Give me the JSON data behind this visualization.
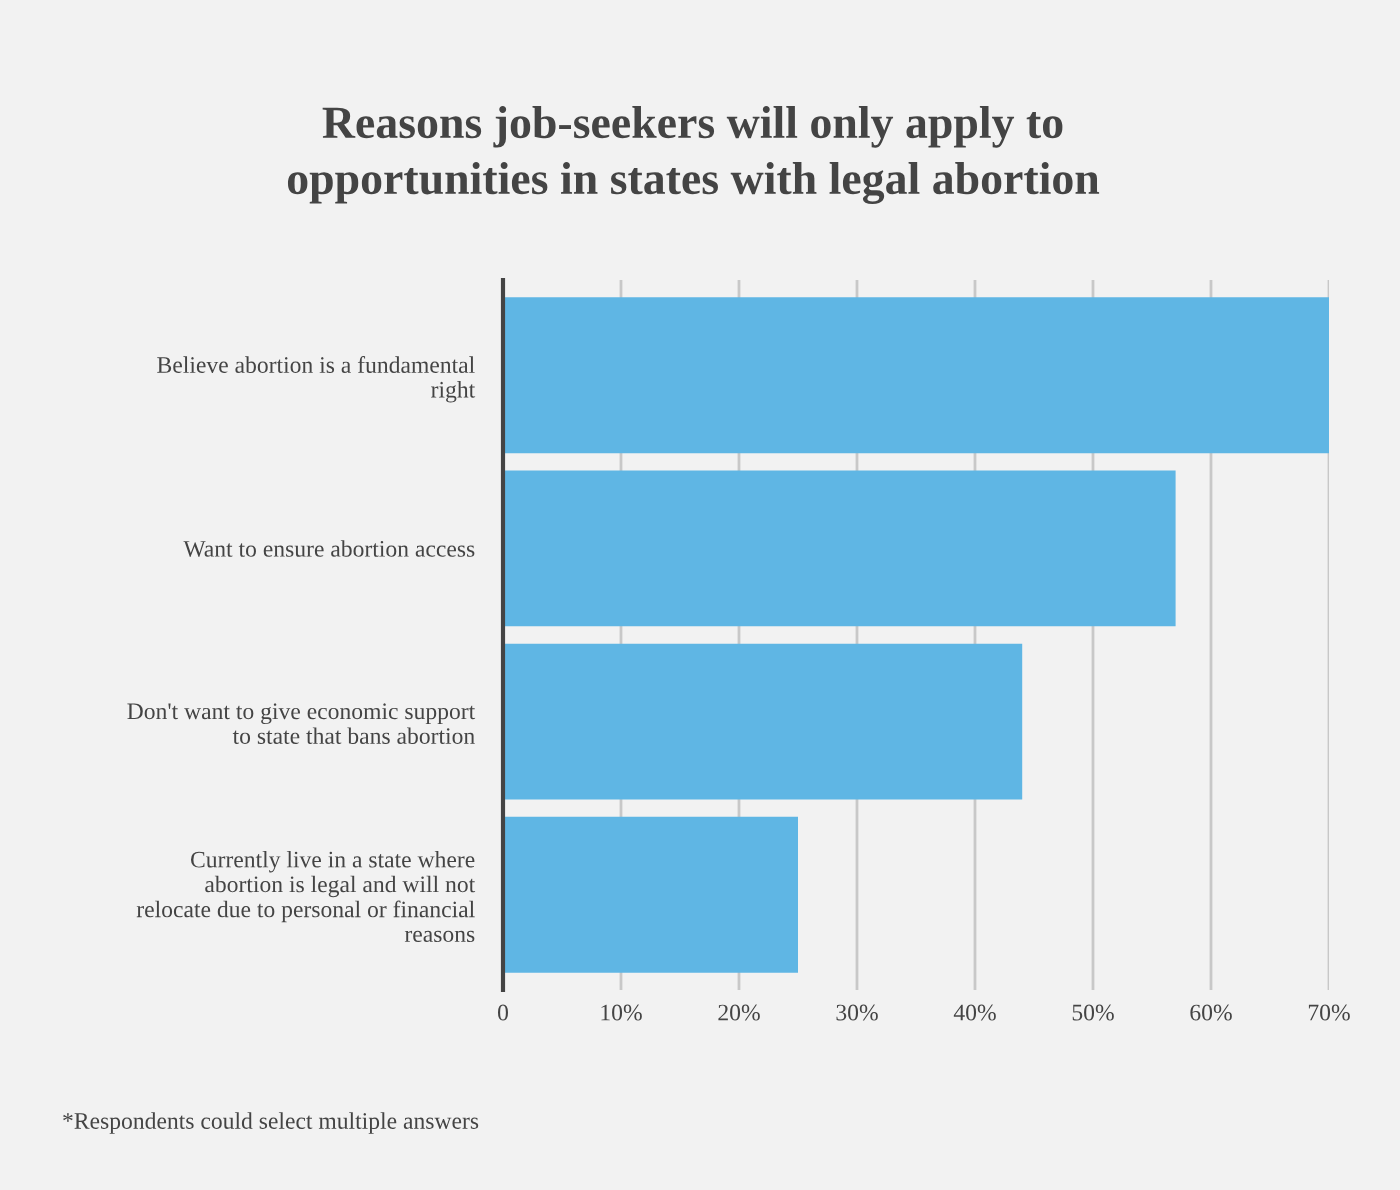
{
  "chart_data": {
    "type": "bar",
    "orientation": "horizontal",
    "title": "Reasons job-seekers will only apply to\nopportunities in states with legal abortion",
    "categories": [
      "Believe abortion is a fundamental\nright",
      "Want to ensure abortion access",
      "Don't want to give economic support\nto state that bans abortion",
      "Currently live in a state where\nabortion is legal and will not\nrelocate due to personal or financial\nreasons"
    ],
    "values": [
      70,
      57,
      44,
      25
    ],
    "color": "#5fb6e4",
    "xlim": [
      0,
      70
    ],
    "xticks": [
      0,
      {
        "value": 10,
        "label": "10%"
      },
      {
        "value": 20,
        "label": "20%"
      },
      {
        "value": 30,
        "label": "30%"
      },
      {
        "value": 40,
        "label": "40%"
      },
      {
        "value": 50,
        "label": "50%"
      },
      {
        "value": 60,
        "label": "60%"
      },
      {
        "value": 70,
        "label": "70%"
      }
    ],
    "grid": "x",
    "legend": false,
    "annotations": [
      "*Respondents could select multiple answers"
    ]
  }
}
